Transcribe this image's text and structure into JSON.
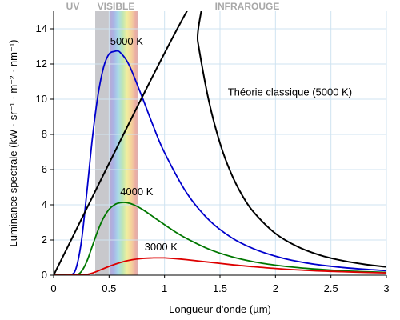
{
  "chart_data": {
    "type": "line",
    "title": "",
    "xlabel": "Longueur d'onde (µm)",
    "ylabel": "Luminance spectrale (kW · sr⁻¹ · m⁻² · nm⁻¹)",
    "xlim": [
      0,
      3
    ],
    "ylim": [
      0,
      15
    ],
    "x_ticks": [
      0,
      0.5,
      1,
      1.5,
      2,
      2.5,
      3
    ],
    "x_tick_labels": [
      "0",
      "0.5",
      "1",
      "1.5",
      "2",
      "2.5",
      "3"
    ],
    "y_ticks": [
      0,
      2,
      4,
      6,
      8,
      10,
      12,
      14
    ],
    "y_tick_labels": [
      "0",
      "2",
      "4",
      "6",
      "8",
      "10",
      "12",
      "14"
    ],
    "grid": true,
    "regions": [
      {
        "label": "UV",
        "x_range": [
          0,
          0.38
        ]
      },
      {
        "label": "VISIBLE",
        "x_range": [
          0.38,
          0.75
        ]
      },
      {
        "label": "INFRAROUGE",
        "x_range": [
          0.75,
          3
        ]
      }
    ],
    "series": [
      {
        "name": "5000 K",
        "color": "#0000cc",
        "label_at": [
          0.51,
          13.1
        ],
        "x": [
          0.1,
          0.15,
          0.2,
          0.25,
          0.3,
          0.35,
          0.4,
          0.45,
          0.5,
          0.55,
          0.58,
          0.6,
          0.65,
          0.7,
          0.8,
          0.9,
          1.0,
          1.2,
          1.4,
          1.6,
          1.8,
          2.0,
          2.2,
          2.4,
          2.6,
          2.8,
          3.0
        ],
        "y": [
          0.0,
          0.01,
          0.34,
          1.91,
          4.73,
          7.8,
          10.23,
          11.8,
          12.57,
          12.72,
          12.74,
          12.66,
          12.28,
          11.67,
          10.09,
          8.45,
          6.96,
          4.67,
          3.14,
          2.15,
          1.51,
          1.08,
          0.78,
          0.58,
          0.44,
          0.34,
          0.26
        ]
      },
      {
        "name": "4000 K",
        "color": "#007700",
        "label_at": [
          0.6,
          4.55
        ],
        "x": [
          0.1,
          0.2,
          0.25,
          0.3,
          0.35,
          0.4,
          0.45,
          0.5,
          0.55,
          0.6,
          0.65,
          0.72,
          0.8,
          0.9,
          1.0,
          1.1,
          1.2,
          1.4,
          1.6,
          1.8,
          2.0,
          2.2,
          2.4,
          2.6,
          2.8,
          3.0
        ],
        "y": [
          0.0,
          0.02,
          0.21,
          0.79,
          1.67,
          2.55,
          3.26,
          3.74,
          4.01,
          4.12,
          4.13,
          4.01,
          3.74,
          3.31,
          2.87,
          2.45,
          2.08,
          1.48,
          1.06,
          0.77,
          0.57,
          0.43,
          0.33,
          0.25,
          0.2,
          0.16
        ]
      },
      {
        "name": "3000 K",
        "color": "#dd0000",
        "label_at": [
          0.82,
          1.4
        ],
        "x": [
          0.1,
          0.25,
          0.3,
          0.35,
          0.4,
          0.5,
          0.6,
          0.7,
          0.8,
          0.9,
          0.97,
          1.0,
          1.1,
          1.2,
          1.4,
          1.6,
          1.8,
          2.0,
          2.2,
          2.4,
          2.6,
          2.8,
          3.0
        ],
        "y": [
          0.0,
          0.01,
          0.04,
          0.12,
          0.24,
          0.5,
          0.72,
          0.87,
          0.95,
          0.98,
          0.98,
          0.98,
          0.94,
          0.88,
          0.74,
          0.6,
          0.48,
          0.38,
          0.3,
          0.24,
          0.2,
          0.16,
          0.13
        ]
      },
      {
        "name": "Théorie classique (5000 K)",
        "color": "#000000",
        "label_at": [
          1.57,
          10.2
        ],
        "x": [
          1.25,
          1.3,
          1.4,
          1.5,
          1.6,
          1.7,
          1.8,
          2.0,
          2.2,
          2.4,
          2.6,
          2.8,
          3.0
        ],
        "y": [
          15.52,
          13.27,
          9.89,
          7.5,
          5.79,
          4.54,
          3.61,
          2.37,
          1.62,
          1.14,
          0.83,
          0.62,
          0.47
        ]
      }
    ]
  }
}
